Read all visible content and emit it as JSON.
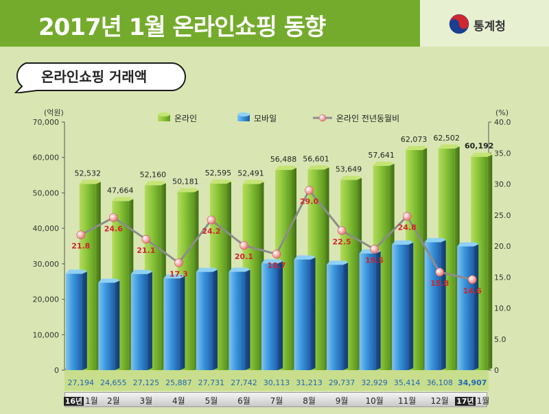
{
  "header": {
    "title": "2017년 1월 온라인쇼핑 동향",
    "org": "통계청",
    "logo_icon": "taegeuk-logo-icon"
  },
  "subtitle": "온라인쇼핑 거래액",
  "colors": {
    "online": "#7cbf2f",
    "mobile": "#2f8ed8",
    "yoy": "#8c8c8c",
    "yoy_marker": "#e88a8a",
    "yoy_label": "#d2232a",
    "mobile_label": "#1f66b8"
  },
  "chart_data": {
    "type": "bar",
    "categories": [
      "1월",
      "2월",
      "3월",
      "4월",
      "5월",
      "6월",
      "7월",
      "8월",
      "9월",
      "10월",
      "11월",
      "12월",
      "1월"
    ],
    "year_tags": [
      "16년",
      "",
      "",
      "",
      "",
      "",
      "",
      "",
      "",
      "",
      "",
      "",
      "17년"
    ],
    "series": [
      {
        "name": "온라인",
        "axis": "left",
        "values": [
          52532,
          47664,
          52160,
          50181,
          52595,
          52491,
          56488,
          56601,
          53649,
          57641,
          62073,
          62502,
          60192
        ],
        "labels": [
          "52,532",
          "47,664",
          "52,160",
          "50,181",
          "52,595",
          "52,491",
          "56,488",
          "56,601",
          "53,649",
          "57,641",
          "62,073",
          "62,502",
          "60,192"
        ]
      },
      {
        "name": "모바일",
        "axis": "left",
        "values": [
          27194,
          24655,
          27125,
          25887,
          27731,
          27742,
          30113,
          31213,
          29737,
          32929,
          35414,
          36108,
          34907
        ],
        "labels": [
          "27,194",
          "24,655",
          "27,125",
          "25,887",
          "27,731",
          "27,742",
          "30,113",
          "31,213",
          "29,737",
          "32,929",
          "35,414",
          "36,108",
          "34,907"
        ]
      },
      {
        "name": "온라인 전년동월비",
        "axis": "right",
        "type": "line",
        "values": [
          21.8,
          24.6,
          21.1,
          17.3,
          24.2,
          20.1,
          18.7,
          29.0,
          22.5,
          19.5,
          24.8,
          15.8,
          14.6
        ],
        "labels": [
          "21.8",
          "24.6",
          "21.1",
          "17.3",
          "24.2",
          "20.1",
          "18.7",
          "29.0",
          "22.5",
          "19.5",
          "24.8",
          "15.8",
          "14.6"
        ]
      }
    ],
    "left_axis": {
      "unit": "(억원)",
      "ylim": [
        0,
        70000
      ],
      "ticks": [
        "0",
        "10,000",
        "20,000",
        "30,000",
        "40,000",
        "50,000",
        "60,000",
        "70,000"
      ]
    },
    "right_axis": {
      "unit": "(%)",
      "ylim": [
        0,
        40
      ],
      "ticks": [
        "0",
        "5.0",
        "10.0",
        "15.0",
        "20.0",
        "25.0",
        "30.0",
        "35.0",
        "40.0"
      ]
    },
    "legend": "top-center",
    "grid": false
  }
}
